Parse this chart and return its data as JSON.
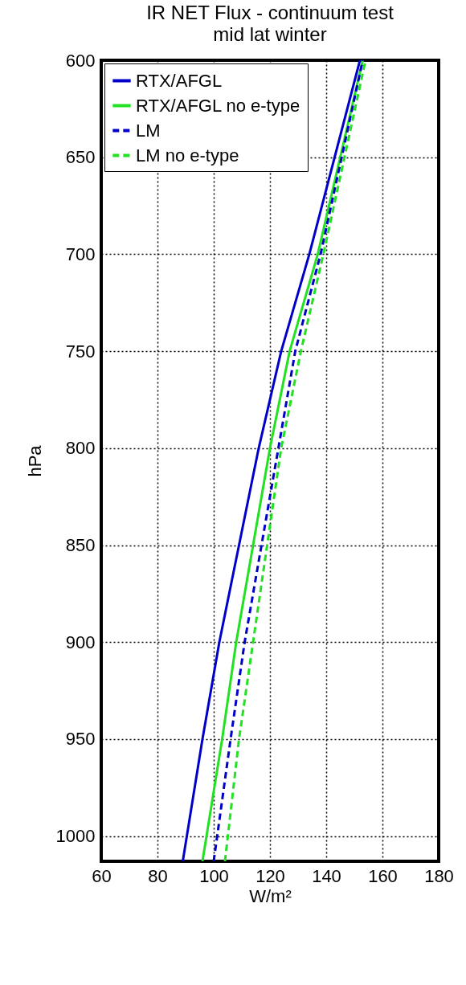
{
  "chart_data": {
    "type": "line",
    "title": "IR NET Flux - continuum test",
    "subtitle": "mid lat winter",
    "xlabel": "W/m²",
    "ylabel": "hPa",
    "xlim": [
      60,
      180
    ],
    "xticks": [
      60,
      80,
      100,
      120,
      140,
      160,
      180
    ],
    "ylim": [
      1013,
      600
    ],
    "yticks": [
      600,
      650,
      700,
      750,
      800,
      850,
      900,
      950,
      1000
    ],
    "grid": true,
    "legend": "top left",
    "series": [
      {
        "name": "RTX/AFGL",
        "color": "#0000c8",
        "line_style": "solid",
        "x": [
          89,
          96,
          102,
          109,
          116,
          124,
          134,
          152
        ],
        "values": [
          1013,
          950,
          900,
          850,
          800,
          750,
          700,
          600
        ]
      },
      {
        "name": "RTX/AFGL no e-type",
        "color": "#22e022",
        "line_style": "solid",
        "x": [
          96,
          103,
          108,
          114,
          120,
          127,
          137,
          153
        ],
        "values": [
          1013,
          950,
          900,
          850,
          800,
          750,
          700,
          600
        ]
      },
      {
        "name": "LM",
        "color": "#0000c8",
        "line_style": "dashed",
        "x": [
          100,
          106,
          111,
          117,
          123,
          129,
          138,
          153
        ],
        "values": [
          1013,
          950,
          900,
          850,
          800,
          750,
          700,
          600
        ]
      },
      {
        "name": "LM no e-type",
        "color": "#22e022",
        "line_style": "dashed",
        "x": [
          104,
          109,
          114,
          119,
          124,
          131,
          139,
          154
        ],
        "values": [
          1013,
          950,
          900,
          850,
          800,
          750,
          700,
          600
        ]
      }
    ]
  }
}
